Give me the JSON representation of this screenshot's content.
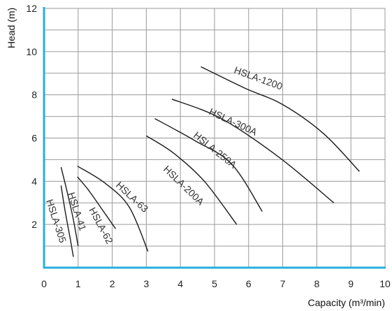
{
  "chart_data": {
    "type": "line",
    "xlabel": "Capacity (m³/min)",
    "ylabel": "Head (m)",
    "xlim": [
      0,
      10
    ],
    "ylim": [
      0,
      12
    ],
    "x_ticks": [
      "0",
      "1",
      "2",
      "3",
      "4",
      "5",
      "6",
      "7",
      "8",
      "9",
      "10"
    ],
    "y_ticks": [
      "2",
      "4",
      "6",
      "8",
      "10",
      "12"
    ],
    "grid": true,
    "colors": {
      "axis": "#29aee0",
      "grid": "#9a9a9a",
      "curve": "#1a1a1a"
    },
    "series": [
      {
        "name": "HSLA-305",
        "x": [
          0.5,
          0.62,
          0.75,
          0.86
        ],
        "y": [
          3.8,
          2.6,
          1.5,
          0.5
        ]
      },
      {
        "name": "HSLA-41",
        "x": [
          0.5,
          0.68,
          0.85,
          1.0
        ],
        "y": [
          4.65,
          3.5,
          2.3,
          1.0
        ]
      },
      {
        "name": "HSLA-62",
        "x": [
          0.98,
          1.3,
          1.7,
          2.1
        ],
        "y": [
          4.2,
          3.6,
          2.7,
          1.8
        ]
      },
      {
        "name": "HSLA-63",
        "x": [
          0.98,
          1.8,
          2.5,
          3.05
        ],
        "y": [
          4.7,
          3.9,
          2.8,
          0.75
        ]
      },
      {
        "name": "HSLA-200A",
        "x": [
          3.0,
          3.8,
          4.7,
          5.65
        ],
        "y": [
          6.1,
          5.3,
          4.0,
          2.0
        ]
      },
      {
        "name": "HSLA-250A",
        "x": [
          3.25,
          4.4,
          5.5,
          6.4
        ],
        "y": [
          6.9,
          5.9,
          4.8,
          2.6
        ]
      },
      {
        "name": "HSLA-300A",
        "x": [
          3.75,
          5.2,
          6.9,
          8.5
        ],
        "y": [
          7.8,
          6.9,
          5.1,
          3.0
        ]
      },
      {
        "name": "HSLA-1200",
        "x": [
          4.6,
          5.9,
          7.0,
          8.2,
          9.25
        ],
        "y": [
          9.3,
          8.3,
          7.55,
          6.2,
          4.45
        ]
      }
    ]
  }
}
